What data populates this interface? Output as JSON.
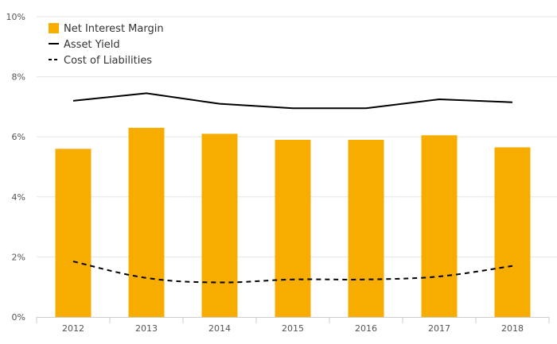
{
  "chart_data": {
    "type": "bar",
    "categories": [
      "2012",
      "2013",
      "2014",
      "2015",
      "2016",
      "2017",
      "2018"
    ],
    "series": [
      {
        "name": "Net Interest Margin",
        "type": "bar",
        "values": [
          5.6,
          6.3,
          6.1,
          5.9,
          5.9,
          6.05,
          5.65
        ]
      },
      {
        "name": "Asset Yield",
        "type": "line",
        "style": "solid",
        "values": [
          7.2,
          7.45,
          7.1,
          6.95,
          6.95,
          7.25,
          7.15
        ]
      },
      {
        "name": "Cost of Liabilities",
        "type": "line",
        "style": "dashed",
        "values": [
          1.85,
          1.3,
          1.15,
          1.25,
          1.25,
          1.35,
          1.7
        ]
      }
    ],
    "y_ticks": [
      "0%",
      "2%",
      "4%",
      "6%",
      "8%",
      "10%"
    ],
    "ylim": [
      0,
      10
    ],
    "grid": true,
    "legend_position": "top-left",
    "colors": {
      "bar": "#f6ad00",
      "line": "#000000",
      "grid": "#e6e6e6",
      "axis": "#cccccc",
      "text": "#555555"
    }
  }
}
